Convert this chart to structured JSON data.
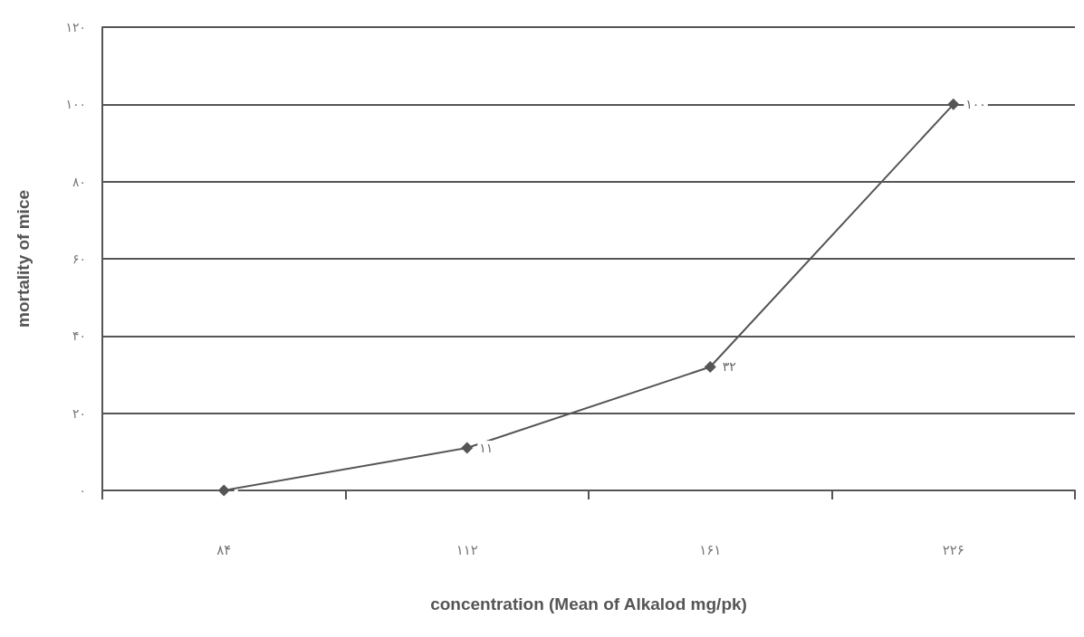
{
  "chart_data": {
    "type": "line",
    "xlabel": "concentration (Mean of Alkalod mg/pk)",
    "ylabel": "mortality of mice",
    "categories": [
      "۸۴",
      "۱۱۲",
      "۱۶۱",
      "۲۲۶"
    ],
    "series": [
      {
        "color": "#555555",
        "values": [
          0,
          11,
          32,
          100
        ],
        "value_labels": [
          null,
          "۱۱",
          "۳۲",
          "۱۰۰"
        ]
      }
    ],
    "ylim": [
      0,
      120
    ],
    "yticks": [
      {
        "value": 0,
        "label": "۰"
      },
      {
        "value": 20,
        "label": "۲۰"
      },
      {
        "value": 40,
        "label": "۴۰"
      },
      {
        "value": 60,
        "label": "۶۰"
      },
      {
        "value": 80,
        "label": "۸۰"
      },
      {
        "value": 100,
        "label": "۱۰۰"
      },
      {
        "value": 120,
        "label": "۱۲۰"
      }
    ],
    "grid": "y",
    "marker": "diamond",
    "line_style": "solid"
  }
}
